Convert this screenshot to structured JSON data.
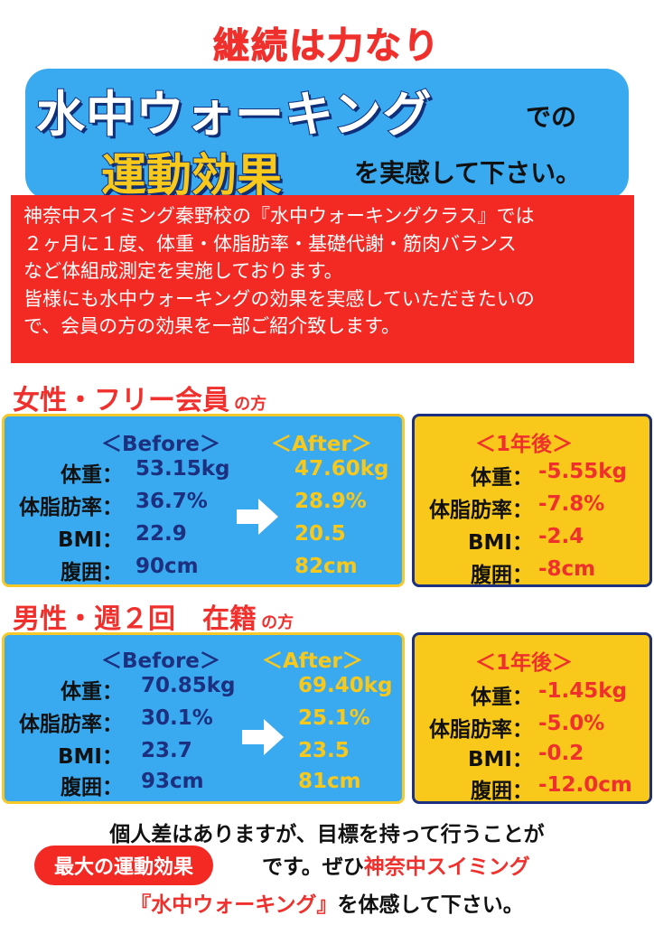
{
  "header": {
    "tagline": "継続は力なり",
    "title": "水中ウォーキング",
    "de_no": "での",
    "effect": "運動効果",
    "subtitle": "を実感して下さい。"
  },
  "intro": {
    "lines": [
      "神奈中スイミング秦野校の『水中ウォーキングクラス』では",
      "２ヶ月に１度、体重・体脂肪率・基礎代謝・筋肉バランス",
      "など体組成測定を実施しております。",
      "皆様にも水中ウォーキングの効果を実感していただきたいの",
      "で、会員の方の効果を一部ご紹介致します。"
    ]
  },
  "sections": [
    {
      "title": "女性・フリー会員",
      "suffix": "の方",
      "before_header": "＜Before＞",
      "after_header": "＜After＞",
      "year_header": "＜1年後＞",
      "rows": [
        {
          "label": "体重：",
          "before": "53.15kg",
          "after": "47.60kg",
          "year_label": "体重：",
          "diff": "-5.55kg"
        },
        {
          "label": "体脂肪率：",
          "before": "36.7%",
          "after": "28.9%",
          "year_label": "体脂肪率：",
          "diff": "-7.8%"
        },
        {
          "label": "BMI：",
          "before": "22.9",
          "after": "20.5",
          "year_label": "BMI：",
          "diff": "-2.4"
        },
        {
          "label": "腹囲：",
          "before": "90cm",
          "after": "82cm",
          "year_label": "腹囲：",
          "diff": "-8cm"
        }
      ]
    },
    {
      "title": "男性・週２回　在籍",
      "suffix": "の方",
      "before_header": "＜Before＞",
      "after_header": "＜After＞",
      "year_header": "＜1年後＞",
      "rows": [
        {
          "label": "体重：",
          "before": "70.85kg",
          "after": "69.40kg",
          "year_label": "体重：",
          "diff": "-1.45kg"
        },
        {
          "label": "体脂肪率：",
          "before": "30.1%",
          "after": "25.1%",
          "year_label": "体脂肪率：",
          "diff": "-5.0%"
        },
        {
          "label": "BMI：",
          "before": "23.7",
          "after": "23.5",
          "year_label": "BMI：",
          "diff": "-0.2"
        },
        {
          "label": "腹囲：",
          "before": "93cm",
          "after": "81cm",
          "year_label": "腹囲：",
          "diff": "-12.0cm"
        }
      ]
    }
  ],
  "footer": {
    "line1": "個人差はありますが、目標を持って行うことが",
    "pill": "最大の運動効果",
    "line2a": "です。ぜひ",
    "line2b": "神奈中スイミング",
    "line3a": "『水中ウォーキング』",
    "line3b": "を体感して下さい。"
  },
  "colors": {
    "red": "#f0302c",
    "blue": "#3aaaf0",
    "yellow": "#f8c81a",
    "navy": "#1d2f7f"
  }
}
